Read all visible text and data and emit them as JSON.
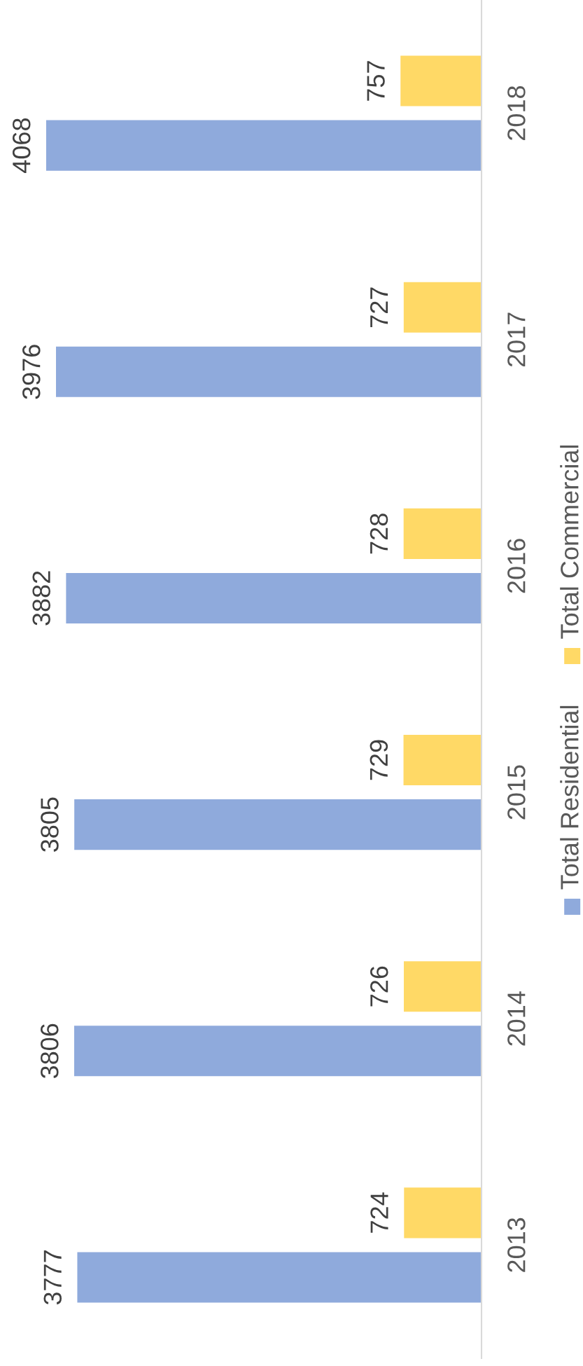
{
  "chart_data": {
    "type": "bar",
    "orientation": "horizontal",
    "categories": [
      "2018",
      "2017",
      "2016",
      "2015",
      "2014",
      "2013"
    ],
    "series": [
      {
        "name": "Total Residential",
        "color": "#8faadc",
        "values": [
          4068,
          3976,
          3882,
          3805,
          3806,
          3777
        ]
      },
      {
        "name": "Total Commercial",
        "color": "#ffd966",
        "values": [
          757,
          727,
          728,
          729,
          726,
          724
        ]
      }
    ],
    "data_labels": true,
    "legend": "right",
    "tick_labels": "y"
  }
}
